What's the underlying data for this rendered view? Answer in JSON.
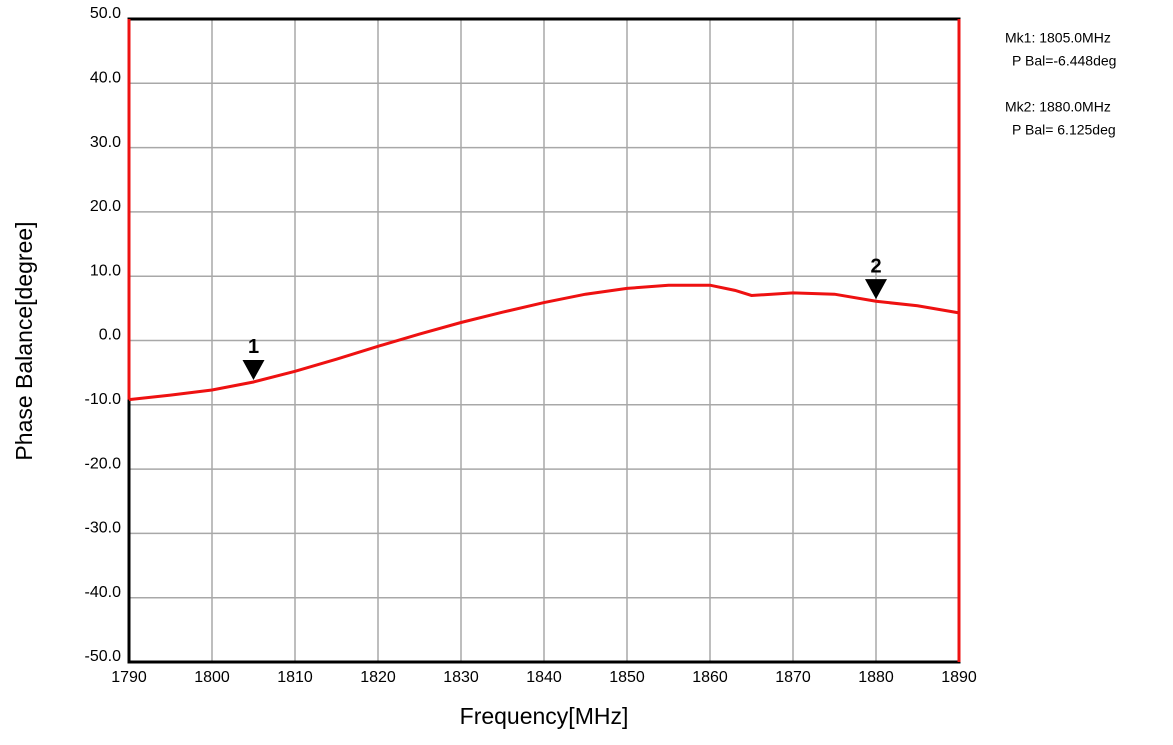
{
  "chart_data": {
    "type": "line",
    "xlabel": "Frequency[MHz]",
    "ylabel": "Phase Balance[degree]",
    "x": [
      1790,
      1795,
      1800,
      1805,
      1810,
      1815,
      1820,
      1825,
      1830,
      1835,
      1840,
      1845,
      1850,
      1855,
      1860,
      1863,
      1865,
      1870,
      1875,
      1880,
      1885,
      1890
    ],
    "values": [
      -9.2,
      -8.5,
      -7.7,
      -6.45,
      -4.8,
      -2.9,
      -0.9,
      1.0,
      2.8,
      4.4,
      5.9,
      7.2,
      8.1,
      8.6,
      8.6,
      7.8,
      7.0,
      7.4,
      7.2,
      6.1,
      5.4,
      4.3
    ],
    "color": "#ee1111",
    "xlim": [
      1790,
      1890
    ],
    "ylim": [
      -50,
      50
    ],
    "xticks": [
      1790,
      1800,
      1810,
      1820,
      1830,
      1840,
      1850,
      1860,
      1870,
      1880,
      1890
    ],
    "yticks": [
      {
        "value": -50,
        "label": "-50.0"
      },
      {
        "value": -40,
        "label": "-40.0"
      },
      {
        "value": -30,
        "label": "-30.0"
      },
      {
        "value": -20,
        "label": "-20.0"
      },
      {
        "value": -10,
        "label": "-10.0"
      },
      {
        "value": 0,
        "label": "0.0"
      },
      {
        "value": 10,
        "label": "10.0"
      },
      {
        "value": 20,
        "label": "20.0"
      },
      {
        "value": 30,
        "label": "30.0"
      },
      {
        "value": 40,
        "label": "40.0"
      },
      {
        "value": 50,
        "label": "50.0"
      }
    ],
    "grid": true,
    "markers": [
      {
        "label": "1",
        "x": 1805,
        "value": -6.448,
        "text": [
          "Mk1: 1805.0MHz",
          "P Bal=-6.448deg"
        ]
      },
      {
        "label": "2",
        "x": 1880,
        "value": 6.125,
        "text": [
          "Mk2: 1880.0MHz",
          "P Bal= 6.125deg"
        ]
      }
    ]
  }
}
